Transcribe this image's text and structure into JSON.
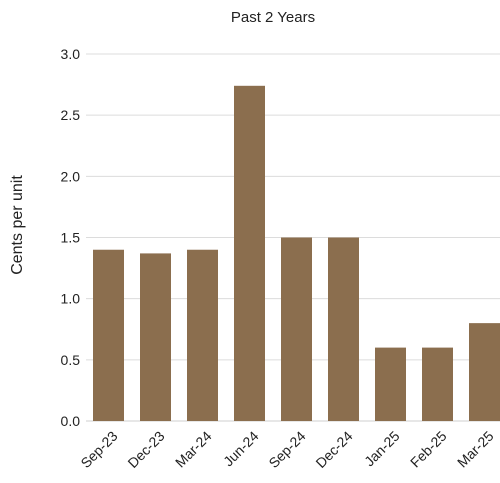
{
  "chart_data": {
    "type": "bar",
    "title": "Past 2 Years",
    "xlabel": "",
    "ylabel": "Cents per unit",
    "categories": [
      "Sep-23",
      "Dec-23",
      "Mar-24",
      "Jun-24",
      "Sep-24",
      "Dec-24",
      "Jan-25",
      "Feb-25",
      "Mar-25"
    ],
    "values": [
      1.4,
      1.37,
      1.4,
      2.74,
      1.5,
      1.5,
      0.6,
      0.6,
      0.8
    ],
    "ylim": [
      0,
      3.0
    ],
    "yticks": [
      "0.0",
      "0.5",
      "1.0",
      "1.5",
      "2.0",
      "2.5",
      "3.0"
    ],
    "grid": true,
    "bar_color": "#8b6e4e"
  }
}
